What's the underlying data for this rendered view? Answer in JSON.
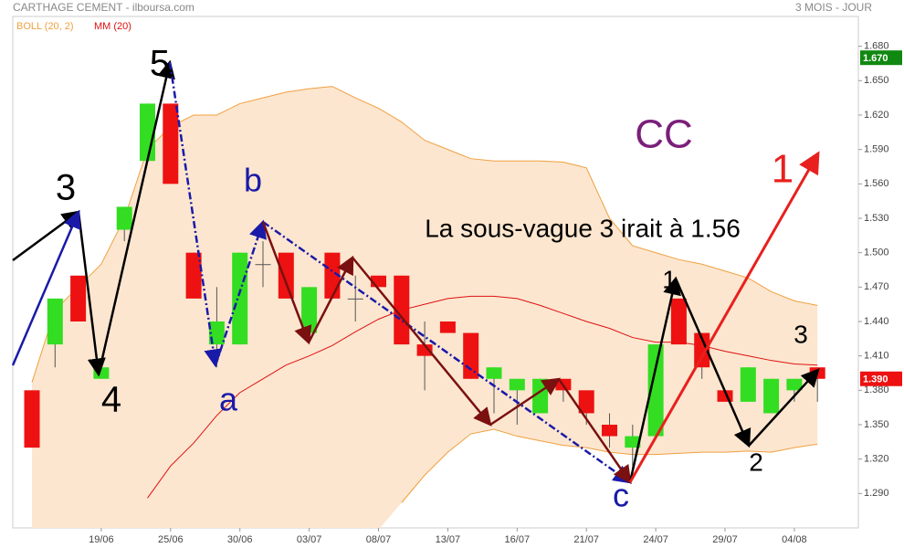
{
  "chart_data": {
    "type": "candlestick",
    "title": "CARTHAGE CEMENT - ilboursa.com",
    "period": "3 MOIS - JOUR",
    "categories": [
      null,
      null,
      null,
      "19/06",
      null,
      null,
      "25/06",
      null,
      null,
      "30/06",
      null,
      null,
      "03/07",
      null,
      null,
      "08/07",
      null,
      null,
      "13/07",
      null,
      null,
      "16/07",
      null,
      null,
      "21/07",
      null,
      null,
      "24/07",
      null,
      null,
      "29/07",
      null,
      null,
      "04/08",
      null
    ],
    "open": [
      1.38,
      1.42,
      1.48,
      1.39,
      1.52,
      1.58,
      1.63,
      1.5,
      1.42,
      1.42,
      1.49,
      1.5,
      1.43,
      1.5,
      1.46,
      1.48,
      1.48,
      1.42,
      1.44,
      1.43,
      1.39,
      1.38,
      1.36,
      1.39,
      1.38,
      1.35,
      1.33,
      1.34,
      1.46,
      1.43,
      1.38,
      1.37,
      1.36,
      1.38,
      1.4
    ],
    "high": [
      1.38,
      1.46,
      1.48,
      1.4,
      1.54,
      1.63,
      1.63,
      1.5,
      1.47,
      1.5,
      1.51,
      1.5,
      1.47,
      1.5,
      1.48,
      1.48,
      1.48,
      1.44,
      1.44,
      1.43,
      1.4,
      1.39,
      1.39,
      1.39,
      1.38,
      1.36,
      1.35,
      1.42,
      1.46,
      1.43,
      1.38,
      1.4,
      1.39,
      1.39,
      1.4
    ],
    "low": [
      1.33,
      1.4,
      1.44,
      1.39,
      1.51,
      1.58,
      1.56,
      1.46,
      1.4,
      1.42,
      1.47,
      1.46,
      1.43,
      1.46,
      1.44,
      1.47,
      1.42,
      1.38,
      1.43,
      1.39,
      1.36,
      1.35,
      1.36,
      1.37,
      1.35,
      1.33,
      1.31,
      1.34,
      1.42,
      1.39,
      1.37,
      1.37,
      1.36,
      1.37,
      1.37
    ],
    "close": [
      1.33,
      1.46,
      1.44,
      1.4,
      1.54,
      1.63,
      1.56,
      1.46,
      1.44,
      1.5,
      1.49,
      1.46,
      1.47,
      1.46,
      1.46,
      1.47,
      1.42,
      1.41,
      1.43,
      1.39,
      1.4,
      1.39,
      1.39,
      1.38,
      1.36,
      1.34,
      1.34,
      1.42,
      1.42,
      1.4,
      1.37,
      1.4,
      1.39,
      1.39,
      1.39
    ],
    "up_color": "#33dd22",
    "down_color": "#ee1111",
    "bands": {
      "name": "BOLL (20, 2)",
      "color": "#f0a040",
      "fill": "#fce6cf",
      "upper": [
        1.387,
        1.45,
        1.47,
        1.49,
        1.53,
        1.59,
        1.61,
        1.62,
        1.62,
        1.63,
        1.635,
        1.64,
        1.643,
        1.645,
        1.635,
        1.626,
        1.614,
        1.598,
        1.59,
        1.582,
        1.58,
        1.58,
        1.58,
        1.579,
        1.574,
        1.53,
        1.506,
        1.5,
        1.494,
        1.49,
        1.484,
        1.478,
        1.466,
        1.458,
        1.454
      ],
      "lower": [
        null,
        null,
        null,
        null,
        null,
        null,
        null,
        null,
        null,
        null,
        null,
        null,
        null,
        null,
        null,
        null,
        1.282,
        1.306,
        1.326,
        1.342,
        1.346,
        1.34,
        1.336,
        1.332,
        1.33,
        1.326,
        1.324,
        1.324,
        1.325,
        1.326,
        1.326,
        1.327,
        1.326,
        1.33,
        1.333
      ]
    },
    "series": [
      {
        "name": "MM (20)",
        "color": "#dd1111",
        "values": [
          null,
          null,
          null,
          null,
          null,
          1.286,
          1.314,
          1.334,
          1.358,
          1.378,
          1.39,
          1.402,
          1.41,
          1.419,
          1.431,
          1.442,
          1.45,
          1.455,
          1.46,
          1.462,
          1.462,
          1.46,
          1.454,
          1.447,
          1.44,
          1.434,
          1.426,
          1.422,
          1.422,
          1.419,
          1.414,
          1.41,
          1.406,
          1.403,
          1.402
        ]
      }
    ],
    "ylim": [
      1.26,
      1.706
    ],
    "yticks": [
      {
        "value": 1.68,
        "label": "1.680"
      },
      {
        "value": 1.65,
        "label": "1.650"
      },
      {
        "value": 1.62,
        "label": "1.620"
      },
      {
        "value": 1.59,
        "label": "1.590"
      },
      {
        "value": 1.56,
        "label": "1.560"
      },
      {
        "value": 1.53,
        "label": "1.530"
      },
      {
        "value": 1.5,
        "label": "1.500"
      },
      {
        "value": 1.47,
        "label": "1.470"
      },
      {
        "value": 1.44,
        "label": "1.440"
      },
      {
        "value": 1.41,
        "label": "1.410"
      },
      {
        "value": 1.38,
        "label": "1.380"
      },
      {
        "value": 1.35,
        "label": "1.350"
      },
      {
        "value": 1.32,
        "label": "1.320"
      },
      {
        "value": 1.29,
        "label": "1.290"
      }
    ],
    "price_tags": [
      {
        "value": 1.67,
        "label": "1.670",
        "color": "#118811"
      },
      {
        "value": 1.39,
        "label": "1.390",
        "color": "#ee1111"
      }
    ],
    "annotations": [
      "5",
      "3",
      "4",
      "b",
      "a",
      "c",
      "1",
      "2",
      "3",
      "1",
      "CC",
      "La sous-vague 3 irait à 1.56"
    ]
  }
}
